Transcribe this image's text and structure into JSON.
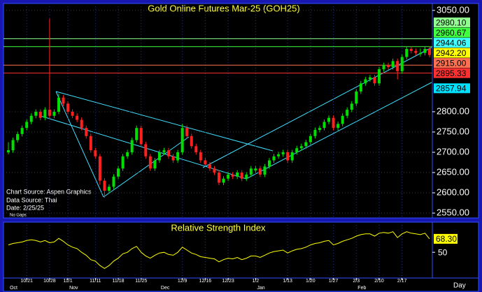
{
  "chart_data": {
    "type": "candlestick",
    "title": "Gold Online Futures Mar-25 (GOH25)",
    "source_lines": [
      "Chart Source: Aspen Graphics",
      "Data Source: Thai",
      "Date:   2/25/25"
    ],
    "gap_note": "No Gaps",
    "x_unit": "Day",
    "up_color": "#00e000",
    "down_color": "#ff2020",
    "ylim": [
      2538,
      3067
    ],
    "yticks": [
      {
        "value": 3050,
        "label": "3050.00"
      },
      {
        "value": 2800,
        "label": "2800.00"
      },
      {
        "value": 2750,
        "label": "2750.00"
      },
      {
        "value": 2700,
        "label": "2700.00"
      },
      {
        "value": 2650,
        "label": "2650.00"
      },
      {
        "value": 2600,
        "label": "2600.00"
      },
      {
        "value": 2550,
        "label": "2550.00"
      }
    ],
    "grid": true,
    "categories": [
      null,
      null,
      null,
      null,
      "10/21",
      null,
      null,
      null,
      null,
      "10/28",
      null,
      null,
      null,
      "11/1",
      null,
      null,
      null,
      null,
      null,
      "11/11",
      null,
      null,
      null,
      null,
      "11/18",
      null,
      null,
      null,
      null,
      "11/25",
      null,
      null,
      null,
      null,
      null,
      null,
      null,
      null,
      "12/9",
      null,
      null,
      null,
      null,
      "12/16",
      null,
      null,
      null,
      null,
      "12/23",
      null,
      null,
      null,
      null,
      null,
      "1/2",
      null,
      null,
      null,
      null,
      null,
      null,
      "1/13",
      null,
      null,
      null,
      null,
      "1/20",
      null,
      null,
      null,
      null,
      "1/27",
      null,
      null,
      null,
      null,
      "2/3",
      null,
      null,
      null,
      null,
      "2/10",
      null,
      null,
      null,
      null,
      "2/17",
      null,
      null,
      null,
      null,
      null,
      null
    ],
    "months": [
      "Oct",
      null,
      null,
      null,
      null,
      null,
      null,
      null,
      null,
      null,
      null,
      null,
      null,
      "Nov",
      null,
      null,
      null,
      null,
      null,
      null,
      null,
      null,
      null,
      null,
      null,
      null,
      null,
      null,
      null,
      null,
      null,
      null,
      null,
      "Dec",
      null,
      null,
      null,
      null,
      null,
      null,
      null,
      null,
      null,
      null,
      null,
      null,
      null,
      null,
      null,
      null,
      null,
      null,
      null,
      null,
      "Jan",
      null,
      null,
      null,
      null,
      null,
      null,
      null,
      null,
      null,
      null,
      null,
      null,
      null,
      null,
      null,
      null,
      null,
      null,
      null,
      null,
      null,
      "Feb",
      null,
      null,
      null,
      null,
      null,
      null,
      null,
      null,
      null,
      null,
      null,
      null,
      null,
      null,
      null,
      null
    ],
    "ohlc": [
      [
        2700,
        2725,
        2695,
        2705
      ],
      [
        2705,
        2736,
        2699,
        2730
      ],
      [
        2730,
        2751,
        2724,
        2745
      ],
      [
        2745,
        2766,
        2739,
        2760
      ],
      [
        2760,
        2781,
        2754,
        2775
      ],
      [
        2775,
        2796,
        2769,
        2790
      ],
      [
        2790,
        2806,
        2784,
        2800
      ],
      [
        2800,
        2806,
        2779,
        2785
      ],
      [
        2785,
        2811,
        2779,
        2805
      ],
      [
        2805,
        3030,
        2784,
        2790
      ],
      [
        2790,
        2806,
        2784,
        2800
      ],
      [
        2800,
        2845,
        2794,
        2835
      ],
      [
        2835,
        2841,
        2814,
        2820
      ],
      [
        2820,
        2826,
        2794,
        2800
      ],
      [
        2800,
        2806,
        2784,
        2790
      ],
      [
        2790,
        2796,
        2774,
        2780
      ],
      [
        2780,
        2786,
        2754,
        2760
      ],
      [
        2760,
        2766,
        2734,
        2740
      ],
      [
        2740,
        2746,
        2699,
        2705
      ],
      [
        2705,
        2711,
        2684,
        2690
      ],
      [
        2690,
        2696,
        2620,
        2630
      ],
      [
        2630,
        2636,
        2588,
        2605
      ],
      [
        2605,
        2621,
        2599,
        2615
      ],
      [
        2615,
        2646,
        2609,
        2640
      ],
      [
        2640,
        2666,
        2634,
        2660
      ],
      [
        2660,
        2696,
        2654,
        2690
      ],
      [
        2690,
        2706,
        2684,
        2700
      ],
      [
        2700,
        2736,
        2694,
        2730
      ],
      [
        2730,
        2766,
        2724,
        2760
      ],
      [
        2760,
        2766,
        2714,
        2720
      ],
      [
        2720,
        2726,
        2684,
        2690
      ],
      [
        2690,
        2696,
        2654,
        2660
      ],
      [
        2660,
        2686,
        2654,
        2680
      ],
      [
        2680,
        2706,
        2674,
        2700
      ],
      [
        2700,
        2711,
        2694,
        2705
      ],
      [
        2705,
        2711,
        2684,
        2690
      ],
      [
        2690,
        2696,
        2674,
        2680
      ],
      [
        2680,
        2706,
        2674,
        2700
      ],
      [
        2700,
        2770,
        2694,
        2760
      ],
      [
        2760,
        2766,
        2734,
        2740
      ],
      [
        2740,
        2746,
        2709,
        2715
      ],
      [
        2715,
        2721,
        2694,
        2700
      ],
      [
        2700,
        2706,
        2674,
        2680
      ],
      [
        2680,
        2686,
        2664,
        2670
      ],
      [
        2670,
        2676,
        2654,
        2660
      ],
      [
        2660,
        2666,
        2644,
        2650
      ],
      [
        2650,
        2656,
        2619,
        2625
      ],
      [
        2625,
        2641,
        2619,
        2635
      ],
      [
        2635,
        2651,
        2629,
        2645
      ],
      [
        2645,
        2651,
        2634,
        2640
      ],
      [
        2640,
        2656,
        2634,
        2650
      ],
      [
        2650,
        2656,
        2629,
        2635
      ],
      [
        2635,
        2651,
        2629,
        2645
      ],
      [
        2645,
        2666,
        2639,
        2660
      ],
      [
        2655,
        2666,
        2649,
        2660
      ],
      [
        2660,
        2666,
        2639,
        2645
      ],
      [
        2645,
        2671,
        2639,
        2665
      ],
      [
        2665,
        2686,
        2659,
        2680
      ],
      [
        2680,
        2696,
        2674,
        2690
      ],
      [
        2690,
        2701,
        2684,
        2695
      ],
      [
        2695,
        2706,
        2689,
        2700
      ],
      [
        2700,
        2706,
        2674,
        2680
      ],
      [
        2680,
        2706,
        2674,
        2700
      ],
      [
        2700,
        2716,
        2694,
        2710
      ],
      [
        2710,
        2721,
        2704,
        2715
      ],
      [
        2715,
        2731,
        2709,
        2725
      ],
      [
        2725,
        2746,
        2719,
        2740
      ],
      [
        2740,
        2761,
        2734,
        2755
      ],
      [
        2755,
        2766,
        2749,
        2760
      ],
      [
        2760,
        2781,
        2754,
        2775
      ],
      [
        2775,
        2791,
        2769,
        2785
      ],
      [
        2785,
        2791,
        2754,
        2760
      ],
      [
        2760,
        2776,
        2754,
        2770
      ],
      [
        2770,
        2796,
        2764,
        2790
      ],
      [
        2790,
        2811,
        2784,
        2805
      ],
      [
        2805,
        2826,
        2799,
        2820
      ],
      [
        2820,
        2856,
        2814,
        2850
      ],
      [
        2850,
        2876,
        2844,
        2870
      ],
      [
        2870,
        2886,
        2864,
        2880
      ],
      [
        2880,
        2891,
        2874,
        2885
      ],
      [
        2885,
        2891,
        2864,
        2870
      ],
      [
        2870,
        2911,
        2864,
        2905
      ],
      [
        2905,
        2921,
        2899,
        2915
      ],
      [
        2915,
        2921,
        2904,
        2910
      ],
      [
        2910,
        2931,
        2904,
        2925
      ],
      [
        2925,
        2931,
        2880,
        2900
      ],
      [
        2900,
        2941,
        2894,
        2935
      ],
      [
        2935,
        2961,
        2929,
        2955
      ],
      [
        2955,
        2961,
        2944,
        2950
      ],
      [
        2950,
        2956,
        2939,
        2945
      ],
      [
        2942,
        2956,
        2936,
        2945
      ],
      [
        2945,
        2961,
        2939,
        2955
      ],
      [
        2955,
        2961,
        2934,
        2940
      ]
    ],
    "levels": [
      {
        "value": 2980.1,
        "label": "2980.10",
        "color": "#90ff90",
        "line": true
      },
      {
        "value": 2960.67,
        "label": "2960.67",
        "color": "#40ff40",
        "line": true
      },
      {
        "value": 2944.06,
        "label": "2944.06",
        "color": "#40ffff",
        "line": false
      },
      {
        "value": 2942.2,
        "label": "2942.20",
        "color": "#ffff00",
        "line": false
      },
      {
        "value": 2915,
        "label": "2915.00",
        "color": "#ff7050",
        "line": true
      },
      {
        "value": 2895.33,
        "label": "2895.33",
        "color": "#ff3030",
        "line": true
      },
      {
        "value": 2857.94,
        "label": "2857.94",
        "color": "#00e0ff",
        "line": false
      }
    ],
    "rsi": {
      "title": "Relative Strength Index",
      "color": "#ffff00",
      "ylim": [
        15,
        91
      ],
      "yticks": [
        50
      ],
      "value_label": "68.30",
      "values": [
        60,
        62,
        63,
        64,
        66,
        67,
        66,
        64,
        66,
        63,
        64,
        69,
        65,
        60,
        57,
        55,
        50,
        46,
        40,
        38,
        32,
        28,
        32,
        38,
        42,
        48,
        50,
        55,
        58,
        50,
        45,
        42,
        46,
        49,
        50,
        47,
        46,
        50,
        57,
        53,
        49,
        47,
        44,
        43,
        42,
        41,
        37,
        40,
        42,
        41,
        43,
        40,
        42,
        45,
        45,
        43,
        46,
        49,
        51,
        52,
        53,
        49,
        52,
        54,
        55,
        57,
        60,
        62,
        63,
        65,
        66,
        60,
        62,
        65,
        67,
        69,
        72,
        74,
        75,
        75,
        72,
        76,
        77,
        76,
        78,
        70,
        75,
        78,
        76,
        75,
        74,
        76,
        68.3
      ]
    }
  }
}
